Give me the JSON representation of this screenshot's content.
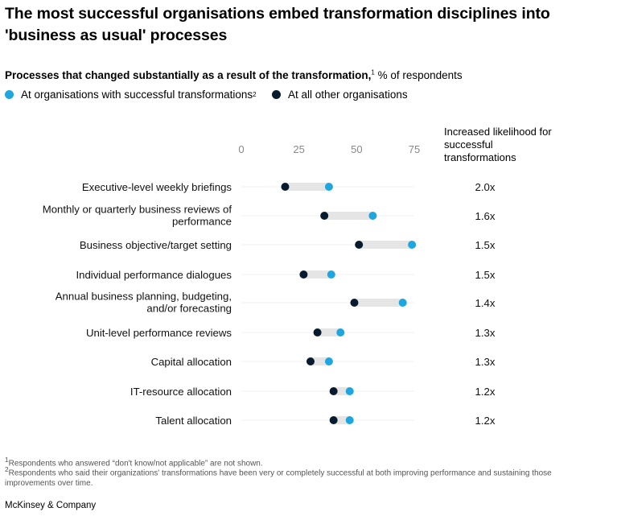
{
  "title": "The most successful organisations embed transformation disciplines into 'business as usual' processes",
  "subtitle": {
    "bold": "Processes that changed substantially as a result of the transformation,",
    "sup": "1",
    "rest": " % of respondents"
  },
  "legend": {
    "successful": {
      "label": "At organisations with successful transformations",
      "sup": "2",
      "color": "#1ea6e0"
    },
    "other": {
      "label": "At all other organisations",
      "color": "#071a2e"
    }
  },
  "likelihood_header": "Increased likelihood for successful transformations",
  "bar_color": "#e5e5e5",
  "chart_data": {
    "type": "dumbbell",
    "xlim": [
      0,
      75
    ],
    "ticks": [
      0,
      25,
      50,
      75
    ],
    "xlabel": "% of respondents",
    "categories": [
      "Executive-level weekly briefings",
      "Monthly or quarterly business reviews of performance",
      "Business objective/target setting",
      "Individual performance dialogues",
      "Annual business planning, budgeting, and/or forecasting",
      "Unit-level performance reviews",
      "Capital allocation",
      "IT-resource allocation",
      "Talent allocation"
    ],
    "label_lines": [
      [
        "Executive-level weekly briefings"
      ],
      [
        "Monthly or quarterly business reviews of",
        "performance"
      ],
      [
        "Business objective/target setting"
      ],
      [
        "Individual performance dialogues"
      ],
      [
        "Annual business planning, budgeting,",
        "and/or forecasting"
      ],
      [
        "Unit-level performance reviews"
      ],
      [
        "Capital allocation"
      ],
      [
        "IT-resource allocation"
      ],
      [
        "Talent allocation"
      ]
    ],
    "series": [
      {
        "name": "At organisations with successful transformations",
        "values": [
          38,
          57,
          74,
          39,
          70,
          43,
          38,
          47,
          47
        ]
      },
      {
        "name": "At all other organisations",
        "values": [
          19,
          36,
          51,
          27,
          49,
          33,
          30,
          40,
          40
        ]
      }
    ],
    "likelihood": [
      "2.0x",
      "1.6x",
      "1.5x",
      "1.5x",
      "1.4x",
      "1.3x",
      "1.3x",
      "1.2x",
      "1.2x"
    ]
  },
  "footnotes": [
    "Respondents who answered “don't know/not applicable” are not shown.",
    "Respondents who said their organizations' transformations have been very or completely successful at both improving performance and sustaining those improvements over time."
  ],
  "footnote_marks": [
    "1",
    "2"
  ],
  "source": "McKinsey & Company"
}
